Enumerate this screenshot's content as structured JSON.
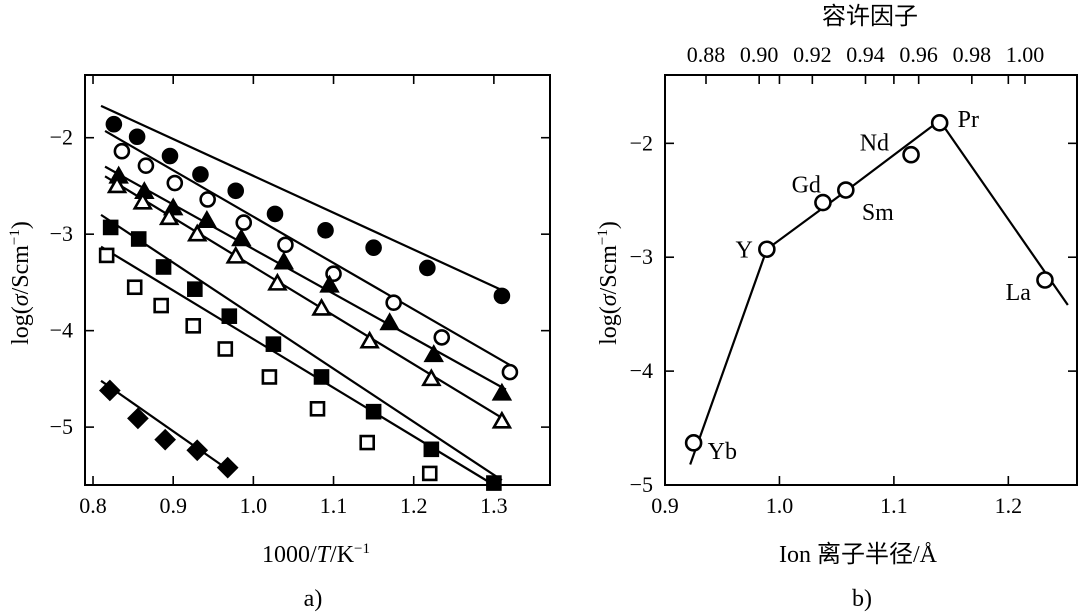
{
  "chart_data": [
    {
      "type": "scatter",
      "panel_label": "a)",
      "xlabel_parts": [
        "1000/",
        "T",
        "/K",
        "−1"
      ],
      "ylabel_parts": [
        "log(",
        "σ",
        "/Scm",
        "−1",
        ")"
      ],
      "xlim": [
        0.79,
        1.37
      ],
      "ylim": [
        -5.6,
        -1.35
      ],
      "xticks": [
        0.8,
        0.9,
        1.0,
        1.1,
        1.2,
        1.3
      ],
      "xtick_labels": [
        "0.8",
        "0.9",
        "1.0",
        "1.1",
        "1.2",
        "1.3"
      ],
      "yticks": [
        -2,
        -3,
        -4,
        -5
      ],
      "ytick_labels": [
        "−2",
        "−3",
        "−4",
        "−5"
      ],
      "series": [
        {
          "marker": "filled-circle",
          "fit": [
            [
              0.81,
              -1.67
            ],
            [
              1.31,
              -3.58
            ]
          ],
          "x": [
            0.826,
            0.855,
            0.896,
            0.934,
            0.978,
            1.027,
            1.09,
            1.15,
            1.217,
            1.31
          ],
          "y": [
            -1.86,
            -1.99,
            -2.19,
            -2.38,
            -2.55,
            -2.79,
            -2.96,
            -3.14,
            -3.35,
            -3.64
          ]
        },
        {
          "marker": "open-circle",
          "fit": [
            [
              0.815,
              -1.93
            ],
            [
              1.325,
              -4.38
            ]
          ],
          "x": [
            0.836,
            0.866,
            0.902,
            0.943,
            0.988,
            1.04,
            1.1,
            1.175,
            1.235,
            1.32
          ],
          "y": [
            -2.14,
            -2.29,
            -2.47,
            -2.64,
            -2.88,
            -3.11,
            -3.41,
            -3.71,
            -4.07,
            -4.43
          ]
        },
        {
          "marker": "filled-triangle",
          "fit": [
            [
              0.815,
              -2.3
            ],
            [
              1.315,
              -4.61
            ]
          ],
          "x": [
            0.832,
            0.864,
            0.9,
            0.942,
            0.985,
            1.038,
            1.095,
            1.17,
            1.225,
            1.31
          ],
          "y": [
            -2.4,
            -2.56,
            -2.73,
            -2.86,
            -3.05,
            -3.29,
            -3.53,
            -3.92,
            -4.25,
            -4.65
          ]
        },
        {
          "marker": "open-triangle",
          "fit": [
            [
              0.815,
              -2.4
            ],
            [
              1.315,
              -4.93
            ]
          ],
          "x": [
            0.83,
            0.862,
            0.895,
            0.93,
            0.978,
            1.03,
            1.085,
            1.145,
            1.222,
            1.31
          ],
          "y": [
            -2.5,
            -2.67,
            -2.83,
            -3.0,
            -3.23,
            -3.51,
            -3.77,
            -4.11,
            -4.5,
            -4.94
          ]
        },
        {
          "marker": "filled-square",
          "fit": [
            [
              0.81,
              -2.8
            ],
            [
              1.31,
              -5.55
            ]
          ],
          "x": [
            0.822,
            0.857,
            0.888,
            0.927,
            0.97,
            1.025,
            1.085,
            1.15,
            1.222,
            1.3
          ],
          "y": [
            -2.93,
            -3.05,
            -3.34,
            -3.57,
            -3.85,
            -4.14,
            -4.48,
            -4.84,
            -5.23,
            -5.58
          ]
        },
        {
          "marker": "open-square",
          "fit": [
            [
              0.81,
              -3.13
            ],
            [
              1.3,
              -5.6
            ]
          ],
          "x": [
            0.817,
            0.852,
            0.885,
            0.925,
            0.965,
            1.02,
            1.08,
            1.142,
            1.22
          ],
          "y": [
            -3.22,
            -3.55,
            -3.74,
            -3.95,
            -4.19,
            -4.48,
            -4.81,
            -5.16,
            -5.48
          ]
        },
        {
          "marker": "filled-diamond",
          "fit": [
            [
              0.81,
              -4.52
            ],
            [
              0.97,
              -5.45
            ]
          ],
          "x": [
            0.821,
            0.856,
            0.89,
            0.93,
            0.968
          ],
          "y": [
            -4.62,
            -4.91,
            -5.13,
            -5.24,
            -5.42
          ]
        }
      ]
    },
    {
      "type": "scatter",
      "panel_label": "b)",
      "xlabel": "Ion 离子半径/Å",
      "ylabel_parts": [
        "log(",
        "σ",
        "/Scm",
        "−1",
        ")"
      ],
      "top_axis_label": "容许因子",
      "top_ticks": [
        "0.88",
        "0.90",
        "0.92",
        "0.94",
        "0.96",
        "0.98",
        "1.00"
      ],
      "xlim": [
        0.9,
        1.26
      ],
      "ylim": [
        -5.0,
        -1.4
      ],
      "xticks": [
        0.9,
        1.0,
        1.1,
        1.2
      ],
      "xtick_labels": [
        "0.9",
        "1.0",
        "1.1",
        "1.2"
      ],
      "yticks": [
        -2,
        -3,
        -4,
        -5
      ],
      "ytick_labels": [
        "−2",
        "−3",
        "−4",
        "−5"
      ],
      "points": [
        {
          "label": "Yb",
          "x": 0.925,
          "y": -4.63
        },
        {
          "label": "Y",
          "x": 0.989,
          "y": -2.93
        },
        {
          "label": "Gd",
          "x": 1.038,
          "y": -2.52
        },
        {
          "label": "Sm",
          "x": 1.058,
          "y": -2.41
        },
        {
          "label": "Nd",
          "x": 1.115,
          "y": -2.1
        },
        {
          "label": "Pr",
          "x": 1.14,
          "y": -1.82
        },
        {
          "label": "La",
          "x": 1.232,
          "y": -3.2
        }
      ],
      "fit": [
        [
          0.922,
          -4.82
        ],
        [
          0.989,
          -2.93
        ],
        [
          1.058,
          -2.42
        ],
        [
          1.14,
          -1.8
        ],
        [
          1.252,
          -3.42
        ]
      ]
    }
  ]
}
